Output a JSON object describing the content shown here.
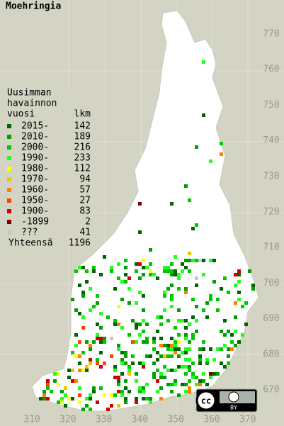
{
  "title": "Moehringia",
  "legend": {
    "heading": [
      "Uusimman",
      "havainnon",
      "vuosi"
    ],
    "count_heading": "lkm",
    "items": [
      {
        "label": "2015-",
        "count": 142,
        "color": "#006400"
      },
      {
        "label": "2010-",
        "count": 189,
        "color": "#00a000"
      },
      {
        "label": "2000-",
        "count": 216,
        "color": "#00c800"
      },
      {
        "label": "1990-",
        "count": 233,
        "color": "#20ff20"
      },
      {
        "label": "1980-",
        "count": 112,
        "color": "#ffff00"
      },
      {
        "label": "1970-",
        "count": 94,
        "color": "#e8c800"
      },
      {
        "label": "1960-",
        "count": 57,
        "color": "#ff8000"
      },
      {
        "label": "1950-",
        "count": 27,
        "color": "#ff4000"
      },
      {
        "label": "1900-",
        "count": 83,
        "color": "#d00000"
      },
      {
        "label": "-1899",
        "count": 2,
        "color": "#800000"
      },
      {
        "label": "???",
        "count": 41,
        "color": "#c8c8c8"
      }
    ],
    "total_label": "Yhteensä",
    "total": 1196
  },
  "easting_labels": [
    310,
    320,
    330,
    340,
    350,
    360,
    370
  ],
  "northing_labels": [
    770,
    760,
    750,
    740,
    730,
    720,
    710,
    700,
    690,
    680,
    670
  ],
  "license": {
    "badge": "cc",
    "by": "BY"
  }
}
